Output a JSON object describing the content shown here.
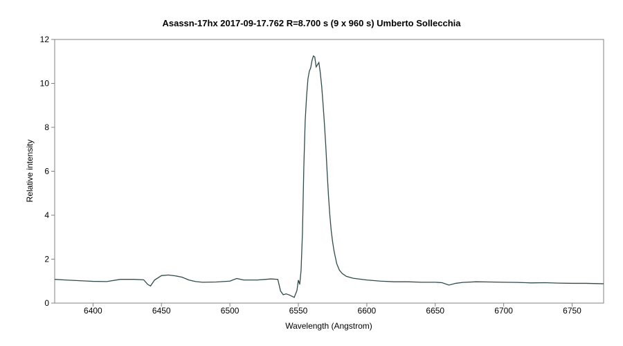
{
  "chart_data": {
    "type": "line",
    "title": "Asassn-17hx   2017-09-17.762   R=8.700 s  (9 x 960 s)   Umberto Sollecchia",
    "xlabel": "Wavelength (Angstrom)",
    "ylabel": "Relative intensity",
    "xlim": [
      6372,
      6773
    ],
    "ylim": [
      0,
      12
    ],
    "xticks": [
      6400,
      6450,
      6500,
      6550,
      6600,
      6650,
      6700,
      6750
    ],
    "yticks": [
      0,
      2,
      4,
      6,
      8,
      10,
      12
    ],
    "grid": false,
    "line_color": "#2f4a4a",
    "series": [
      {
        "x": [
          6372,
          6380,
          6390,
          6400,
          6410,
          6420,
          6430,
          6437,
          6440,
          6442,
          6445,
          6450,
          6455,
          6460,
          6465,
          6470,
          6475,
          6480,
          6490,
          6500,
          6505,
          6510,
          6520,
          6530,
          6535,
          6537,
          6539,
          6541,
          6543,
          6545,
          6547,
          6549,
          6550,
          6551,
          6552,
          6553,
          6554,
          6555,
          6556,
          6557,
          6558,
          6559,
          6560,
          6561,
          6562,
          6563,
          6564,
          6565,
          6566,
          6567,
          6568,
          6569,
          6570,
          6571,
          6572,
          6573,
          6574,
          6575,
          6576,
          6577,
          6578,
          6579,
          6580,
          6582,
          6585,
          6590,
          6600,
          6610,
          6620,
          6630,
          6640,
          6650,
          6655,
          6660,
          6665,
          6670,
          6680,
          6690,
          6700,
          6710,
          6720,
          6730,
          6740,
          6750,
          6760,
          6773
        ],
        "y": [
          1.08,
          1.05,
          1.02,
          0.99,
          0.98,
          1.08,
          1.08,
          1.06,
          0.85,
          0.78,
          1.05,
          1.25,
          1.28,
          1.24,
          1.18,
          1.05,
          0.98,
          0.95,
          0.96,
          1.0,
          1.12,
          1.05,
          1.05,
          1.1,
          1.08,
          0.55,
          0.38,
          0.42,
          0.38,
          0.32,
          0.26,
          0.58,
          1.05,
          0.85,
          1.5,
          3.2,
          6.2,
          8.3,
          9.4,
          10.2,
          10.55,
          10.7,
          11.05,
          11.25,
          11.2,
          10.75,
          10.85,
          10.95,
          10.5,
          9.9,
          9.1,
          8.2,
          7.2,
          6.0,
          4.9,
          4.0,
          3.3,
          2.8,
          2.4,
          2.1,
          1.8,
          1.65,
          1.5,
          1.35,
          1.22,
          1.13,
          1.05,
          1.0,
          0.97,
          0.97,
          0.95,
          0.95,
          0.93,
          0.82,
          0.9,
          0.94,
          0.97,
          0.96,
          0.95,
          0.94,
          0.92,
          0.93,
          0.91,
          0.9,
          0.9,
          0.88
        ]
      }
    ]
  }
}
